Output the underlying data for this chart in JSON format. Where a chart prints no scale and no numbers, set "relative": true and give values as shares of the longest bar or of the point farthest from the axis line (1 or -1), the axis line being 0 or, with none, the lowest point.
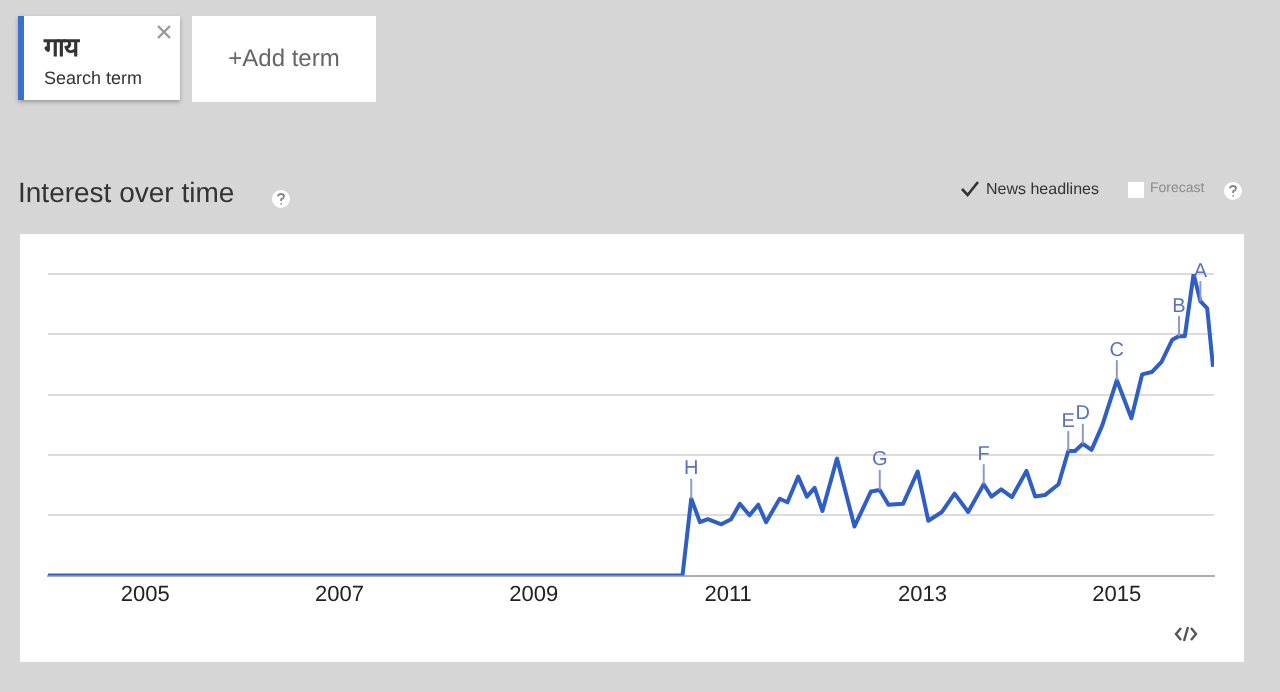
{
  "chart_data": {
    "type": "line",
    "title": "Interest over time",
    "relative": true,
    "annotations": [
      "गाय",
      "Search term",
      "+Add term",
      "News headlines",
      "Forecast",
      {
        "text": "H",
        "x": 2010.62,
        "y": 0.255
      },
      {
        "text": "G",
        "x": 2012.56,
        "y": 0.284
      },
      {
        "text": "F",
        "x": 2013.63,
        "y": 0.303
      },
      {
        "text": "E",
        "x": 2014.5,
        "y": 0.413
      },
      {
        "text": "D",
        "x": 2014.65,
        "y": 0.437
      },
      {
        "text": "C",
        "x": 2015.0,
        "y": 0.648
      },
      {
        "text": "B",
        "x": 2015.64,
        "y": 0.794
      },
      {
        "text": "A",
        "x": 2015.86,
        "y": 0.91
      }
    ],
    "x": [
      2004.0,
      2010.53,
      2010.62,
      2010.71,
      2010.79,
      2010.93,
      2011.03,
      2011.12,
      2011.22,
      2011.31,
      2011.39,
      2011.53,
      2011.61,
      2011.72,
      2011.81,
      2011.89,
      2011.97,
      2012.12,
      2012.3,
      2012.47,
      2012.56,
      2012.65,
      2012.8,
      2012.95,
      2013.06,
      2013.2,
      2013.33,
      2013.47,
      2013.63,
      2013.71,
      2013.81,
      2013.92,
      2014.07,
      2014.16,
      2014.26,
      2014.4,
      2014.5,
      2014.57,
      2014.65,
      2014.74,
      2014.85,
      2015.0,
      2015.15,
      2015.26,
      2015.36,
      2015.46,
      2015.57,
      2015.64,
      2015.7,
      2015.79,
      2015.86,
      2015.93,
      2015.99
    ],
    "series": [
      {
        "color": "#2f5ec4",
        "values": [
          0,
          0,
          0.255,
          0.177,
          0.187,
          0.17,
          0.187,
          0.238,
          0.2,
          0.235,
          0.177,
          0.255,
          0.243,
          0.328,
          0.262,
          0.291,
          0.214,
          0.388,
          0.163,
          0.279,
          0.284,
          0.235,
          0.238,
          0.345,
          0.182,
          0.211,
          0.272,
          0.211,
          0.303,
          0.262,
          0.286,
          0.26,
          0.347,
          0.262,
          0.267,
          0.303,
          0.413,
          0.413,
          0.437,
          0.417,
          0.498,
          0.648,
          0.522,
          0.667,
          0.675,
          0.709,
          0.782,
          0.794,
          0.794,
          1.0,
          0.91,
          0.886,
          0.692
        ]
      }
    ],
    "xlim": [
      2004,
      2016
    ],
    "xticks": [
      2005,
      2007,
      2009,
      2011,
      2013,
      2015
    ],
    "grid": "y",
    "legend": false,
    "marker": "none",
    "line_style": "solid"
  }
}
